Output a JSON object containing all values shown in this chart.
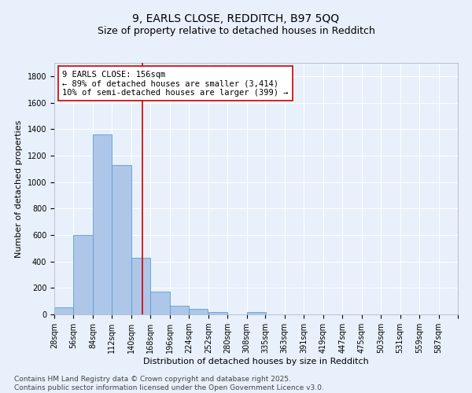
{
  "title1": "9, EARLS CLOSE, REDDITCH, B97 5QQ",
  "title2": "Size of property relative to detached houses in Redditch",
  "xlabel": "Distribution of detached houses by size in Redditch",
  "ylabel": "Number of detached properties",
  "bin_labels": [
    "28sqm",
    "56sqm",
    "84sqm",
    "112sqm",
    "140sqm",
    "168sqm",
    "196sqm",
    "224sqm",
    "252sqm",
    "280sqm",
    "308sqm",
    "335sqm",
    "363sqm",
    "391sqm",
    "419sqm",
    "447sqm",
    "475sqm",
    "503sqm",
    "531sqm",
    "559sqm",
    "587sqm"
  ],
  "bin_edges": [
    28,
    56,
    84,
    112,
    140,
    168,
    196,
    224,
    252,
    280,
    308,
    335,
    363,
    391,
    419,
    447,
    475,
    503,
    531,
    559,
    587
  ],
  "bar_heights": [
    55,
    600,
    1360,
    1130,
    425,
    170,
    65,
    40,
    15,
    0,
    15,
    0,
    0,
    0,
    0,
    0,
    0,
    0,
    0,
    0
  ],
  "bar_color": "#aec6e8",
  "bar_edge_color": "#5a9fd4",
  "vline_x": 156,
  "vline_color": "#cc0000",
  "annotation_line1": "9 EARLS CLOSE: 156sqm",
  "annotation_line2": "← 89% of detached houses are smaller (3,414)",
  "annotation_line3": "10% of semi-detached houses are larger (399) →",
  "ylim": [
    0,
    1900
  ],
  "yticks": [
    0,
    200,
    400,
    600,
    800,
    1000,
    1200,
    1400,
    1600,
    1800
  ],
  "bg_color": "#e8f0fb",
  "plot_bg_color": "#e8f0fb",
  "grid_color": "#ffffff",
  "footer": "Contains HM Land Registry data © Crown copyright and database right 2025.\nContains public sector information licensed under the Open Government Licence v3.0.",
  "title_fontsize": 10,
  "subtitle_fontsize": 9,
  "axis_label_fontsize": 8,
  "tick_fontsize": 7,
  "annotation_fontsize": 7.5,
  "footer_fontsize": 6.5
}
